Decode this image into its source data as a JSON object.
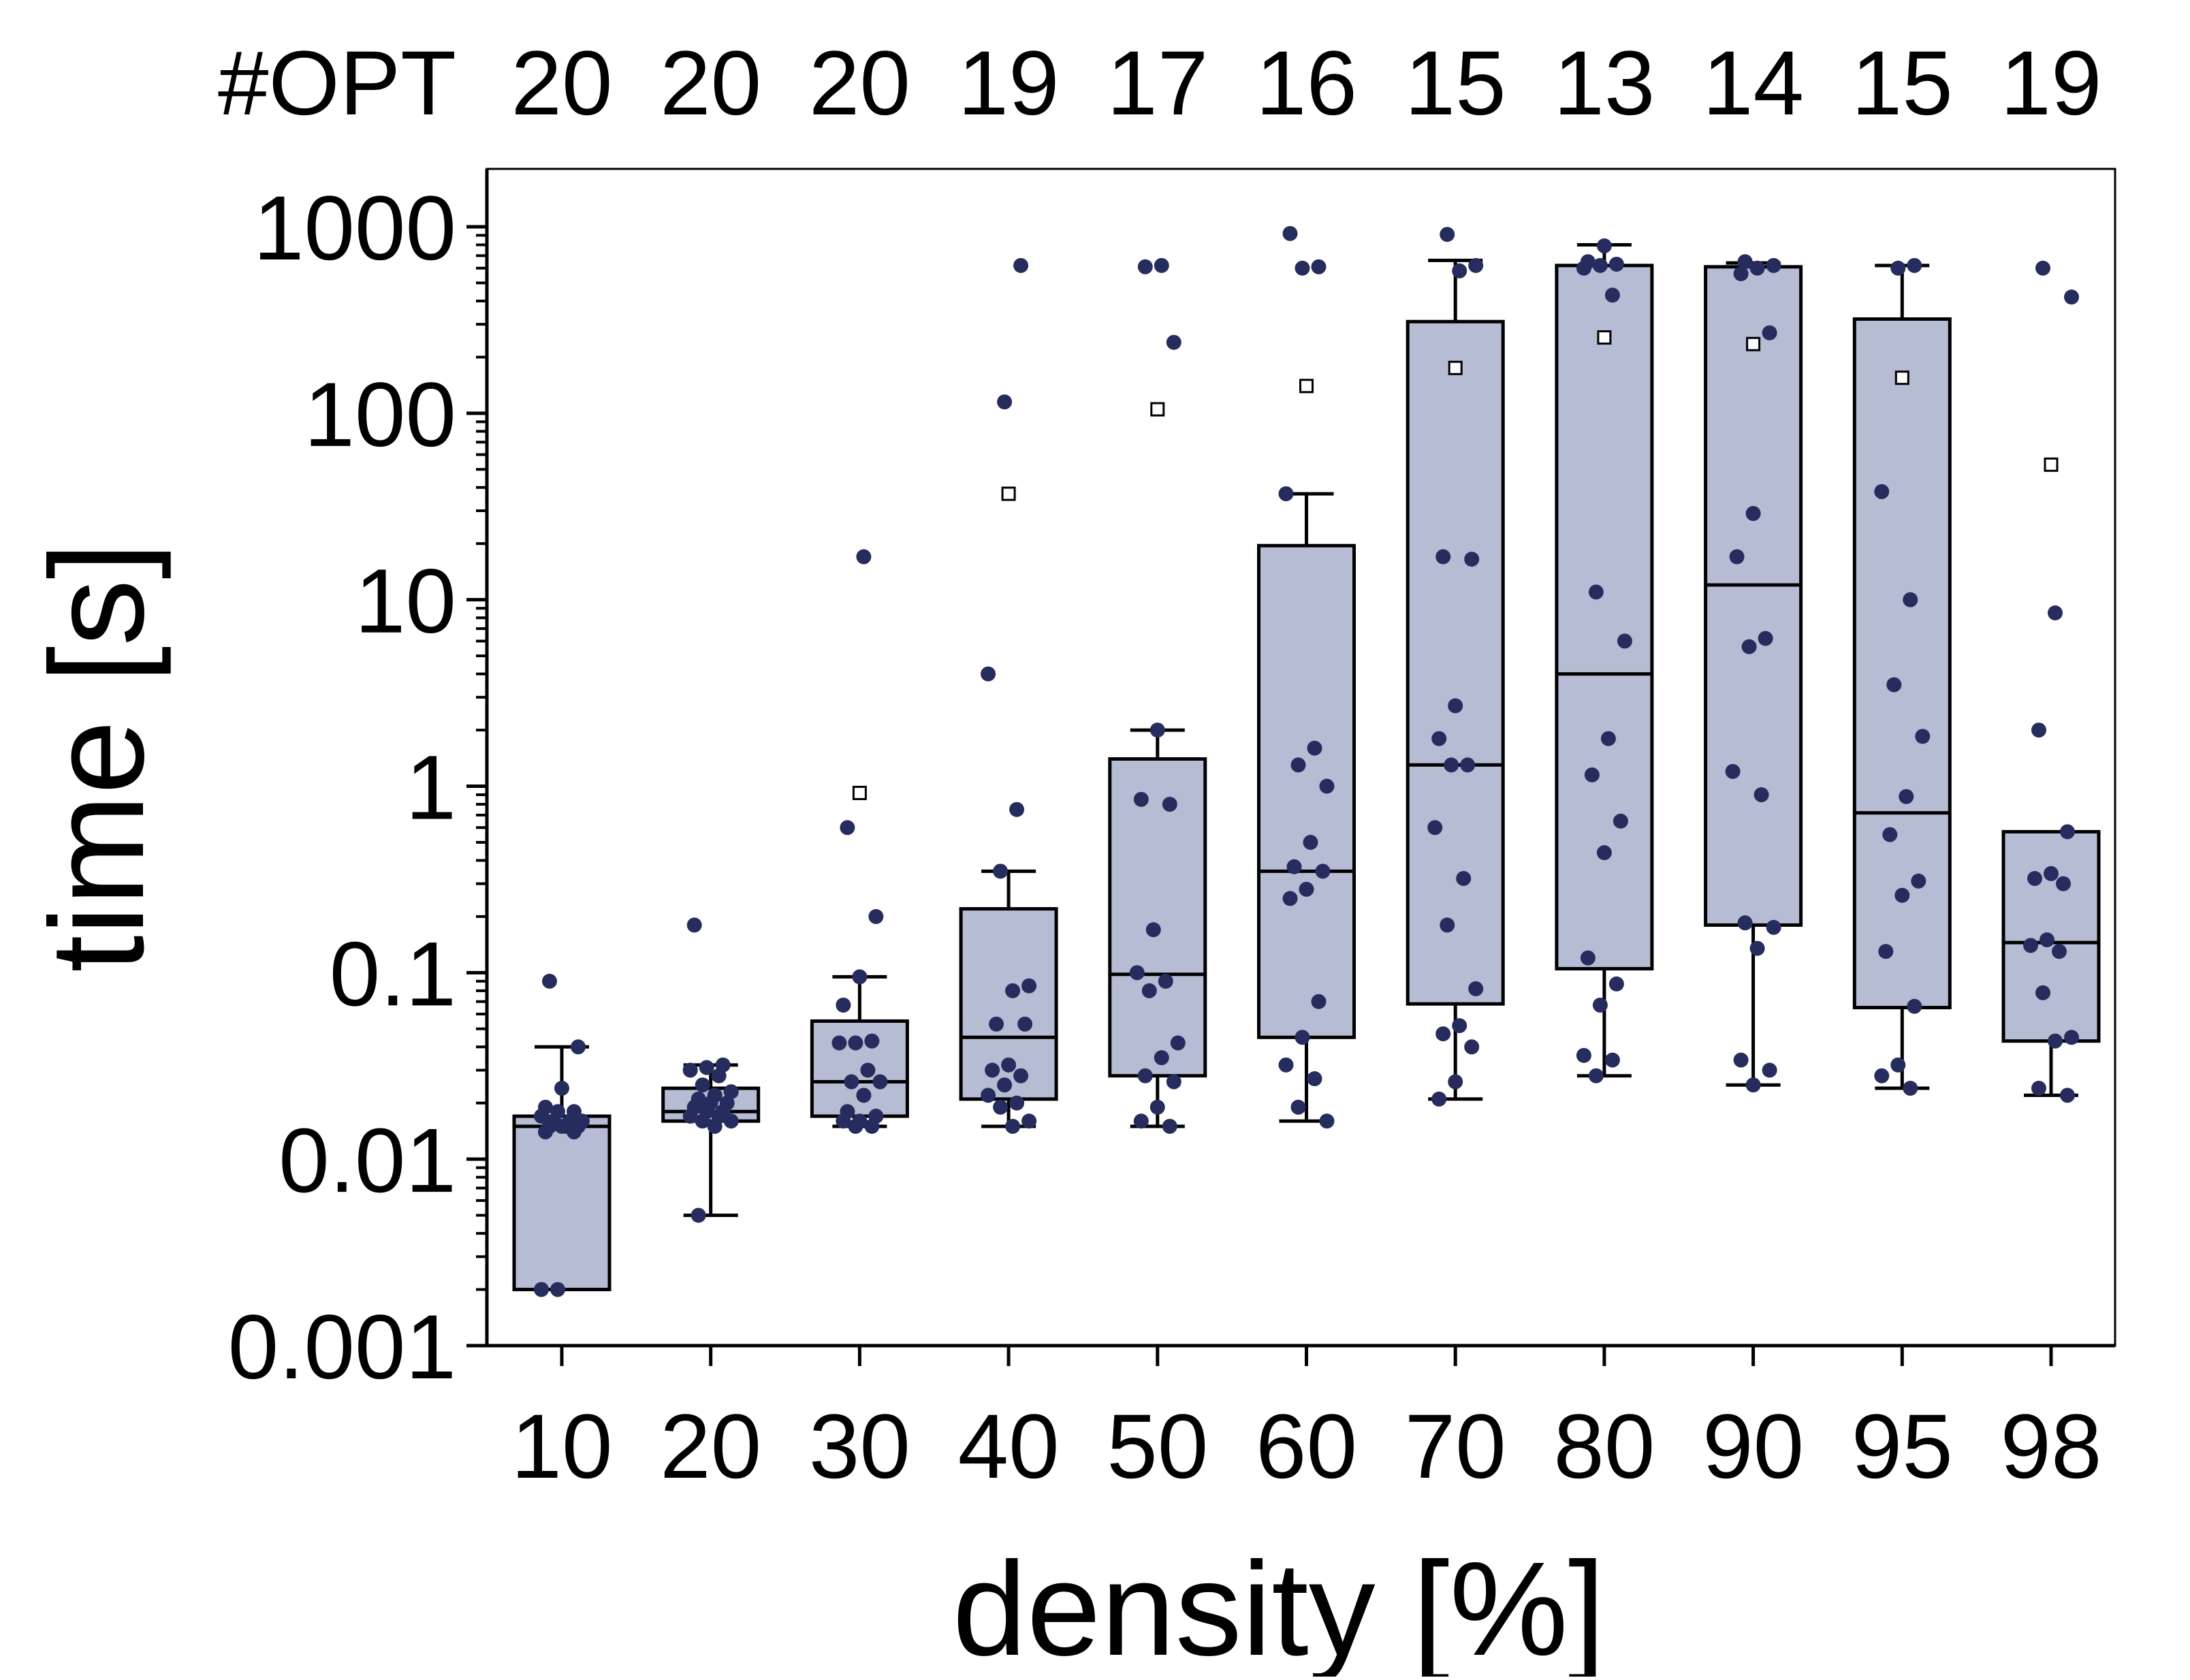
{
  "chart_data": {
    "type": "box",
    "title": "",
    "xlabel": "density [%]",
    "ylabel": "time [s]",
    "yscale": "log",
    "ylim": [
      0.001,
      2000
    ],
    "yticks": [
      0.001,
      0.01,
      0.1,
      1,
      10,
      100,
      1000
    ],
    "ytick_labels": [
      "0.001",
      "0.01",
      "0.1",
      "1",
      "10",
      "100",
      "1000"
    ],
    "categories": [
      "10",
      "20",
      "30",
      "40",
      "50",
      "60",
      "70",
      "80",
      "90",
      "95",
      "98"
    ],
    "opt_header_label": "#OPT",
    "opt_counts": [
      "20",
      "20",
      "20",
      "19",
      "17",
      "16",
      "15",
      "13",
      "14",
      "15",
      "19"
    ],
    "colors": {
      "box_fill": "#b6bcd4",
      "point": "#262d5e",
      "line": "#000000"
    },
    "series": [
      {
        "category": "10",
        "whisker_low": 0.002,
        "q1": 0.002,
        "median": 0.015,
        "q3": 0.017,
        "whisker_high": 0.04,
        "mean": null,
        "points": [
          0.002,
          0.002,
          0.014,
          0.014,
          0.015,
          0.015,
          0.015,
          0.015,
          0.016,
          0.016,
          0.016,
          0.017,
          0.018,
          0.018,
          0.019,
          0.024,
          0.04,
          0.09
        ]
      },
      {
        "category": "20",
        "whisker_low": 0.005,
        "q1": 0.016,
        "median": 0.018,
        "q3": 0.024,
        "whisker_high": 0.032,
        "mean": null,
        "points": [
          0.005,
          0.015,
          0.016,
          0.016,
          0.017,
          0.017,
          0.018,
          0.018,
          0.019,
          0.02,
          0.02,
          0.021,
          0.022,
          0.023,
          0.025,
          0.028,
          0.03,
          0.031,
          0.032,
          0.18
        ]
      },
      {
        "category": "30",
        "whisker_low": 0.015,
        "q1": 0.017,
        "median": 0.026,
        "q3": 0.055,
        "whisker_high": 0.095,
        "mean": 0.92,
        "points": [
          0.015,
          0.015,
          0.016,
          0.016,
          0.017,
          0.018,
          0.022,
          0.026,
          0.026,
          0.03,
          0.042,
          0.042,
          0.043,
          0.067,
          0.095,
          0.2,
          0.6,
          17
        ]
      },
      {
        "category": "40",
        "whisker_low": 0.015,
        "q1": 0.021,
        "median": 0.045,
        "q3": 0.22,
        "whisker_high": 0.35,
        "mean": 37,
        "points": [
          0.015,
          0.016,
          0.019,
          0.02,
          0.022,
          0.025,
          0.028,
          0.03,
          0.032,
          0.053,
          0.053,
          0.08,
          0.085,
          0.35,
          0.75,
          4,
          115,
          620
        ]
      },
      {
        "category": "50",
        "whisker_low": 0.015,
        "q1": 0.028,
        "median": 0.098,
        "q3": 1.4,
        "whisker_high": 2,
        "mean": 105,
        "points": [
          0.015,
          0.016,
          0.019,
          0.026,
          0.028,
          0.035,
          0.042,
          0.08,
          0.09,
          0.1,
          0.17,
          0.8,
          0.85,
          2,
          240,
          610,
          620
        ]
      },
      {
        "category": "60",
        "whisker_low": 0.016,
        "q1": 0.045,
        "median": 0.35,
        "q3": 19.5,
        "whisker_high": 37,
        "mean": 140,
        "points": [
          0.016,
          0.019,
          0.027,
          0.032,
          0.045,
          0.07,
          0.25,
          0.28,
          0.35,
          0.37,
          0.5,
          1,
          1.3,
          1.6,
          37,
          600,
          610,
          920
        ]
      },
      {
        "category": "70",
        "whisker_low": 0.021,
        "q1": 0.068,
        "median": 1.3,
        "q3": 310,
        "whisker_high": 660,
        "mean": 175,
        "points": [
          0.021,
          0.026,
          0.04,
          0.047,
          0.052,
          0.082,
          0.18,
          0.32,
          0.6,
          1.3,
          1.3,
          1.8,
          2.7,
          16.5,
          17,
          580,
          620,
          910
        ]
      },
      {
        "category": "80",
        "whisker_low": 0.028,
        "q1": 0.105,
        "median": 4,
        "q3": 620,
        "whisker_high": 800,
        "mean": 255,
        "points": [
          0.028,
          0.034,
          0.036,
          0.067,
          0.087,
          0.12,
          0.44,
          0.65,
          1.15,
          1.8,
          6,
          11,
          430,
          600,
          620,
          630,
          650,
          790
        ]
      },
      {
        "category": "90",
        "whisker_low": 0.025,
        "q1": 0.18,
        "median": 12,
        "q3": 610,
        "whisker_high": 640,
        "mean": 235,
        "points": [
          0.025,
          0.03,
          0.034,
          0.135,
          0.175,
          0.185,
          0.9,
          1.2,
          5.6,
          6.2,
          17,
          29,
          270,
          560,
          600,
          620,
          650
        ]
      },
      {
        "category": "95",
        "whisker_low": 0.024,
        "q1": 0.065,
        "median": 0.72,
        "q3": 320,
        "whisker_high": 620,
        "mean": 155,
        "points": [
          0.024,
          0.028,
          0.032,
          0.066,
          0.13,
          0.26,
          0.31,
          0.55,
          0.88,
          1.85,
          3.5,
          10,
          38,
          600,
          620
        ]
      },
      {
        "category": "98",
        "whisker_low": 0.022,
        "q1": 0.043,
        "median": 0.145,
        "q3": 0.57,
        "whisker_high": 0.57,
        "mean": 53,
        "points": [
          0.022,
          0.024,
          0.043,
          0.045,
          0.078,
          0.13,
          0.14,
          0.15,
          0.3,
          0.32,
          0.34,
          0.57,
          2,
          8.5,
          420,
          600
        ]
      }
    ]
  }
}
